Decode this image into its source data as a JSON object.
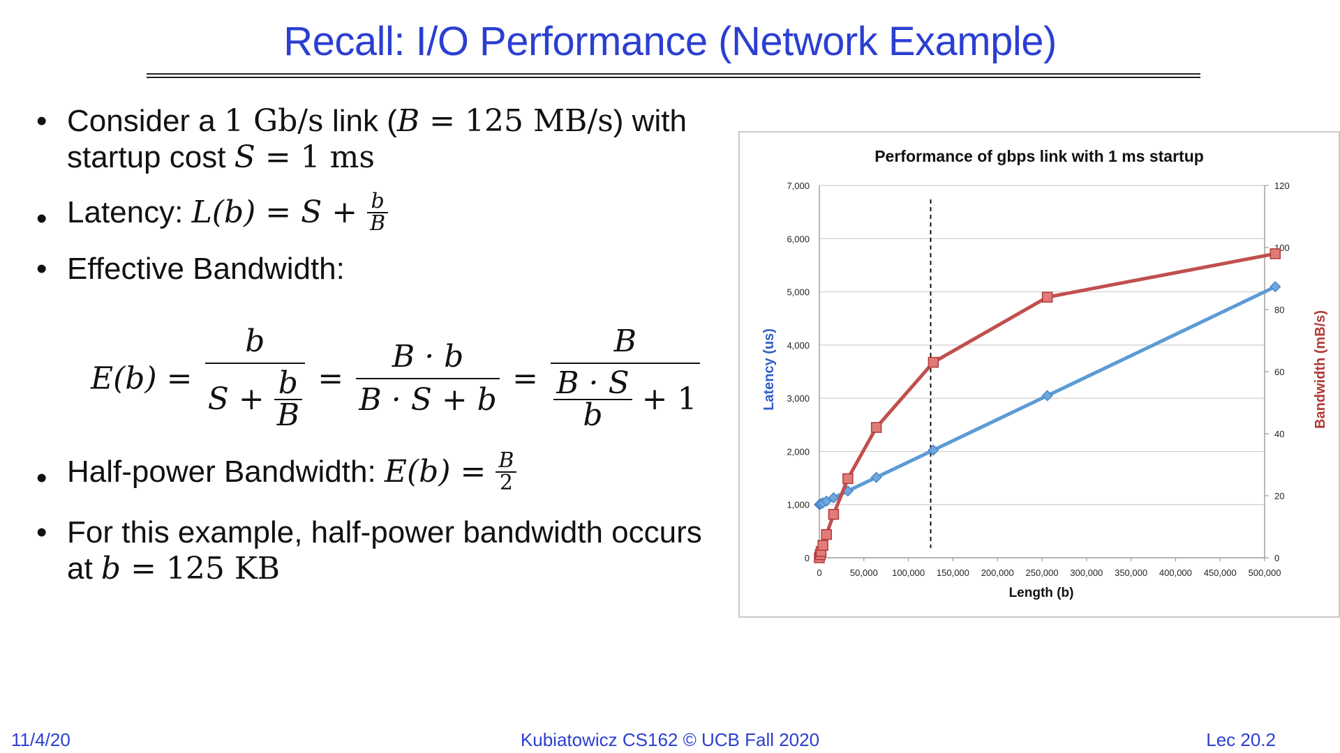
{
  "slide": {
    "title": "Recall: I/O Performance (Network Example)"
  },
  "bullets": {
    "b1": {
      "pre": "Consider a ",
      "link_rate": "1 Gb/s",
      "mid1": " link (",
      "B_sym": "B",
      "eq1": " = ",
      "bw_value": "125 MB/s",
      "post1": ") with",
      "line2_pre": "startup cost ",
      "S_sym": "S",
      "eq2": " = ",
      "startup_value": "1 ms"
    },
    "b2": {
      "label": "Latency: ",
      "lhs": "L(b) = S + ",
      "num": "b",
      "den": "B"
    },
    "b3": {
      "label": "Effective Bandwidth:"
    },
    "b4": {
      "label": "Half-power Bandwidth: ",
      "lhs": "E(b) = ",
      "num": "B",
      "den": "2"
    },
    "b5": {
      "line1": "For this example, half-power bandwidth occurs",
      "line2_pre": "at ",
      "b_sym": "b",
      "eq": " = ",
      "value": "125 KB"
    }
  },
  "equation": {
    "lhs": "E(b) =",
    "f1_num": "b",
    "f1_den_pre": "S +",
    "f1_den_num": "b",
    "f1_den_den": "B",
    "eq2": "=",
    "f2_num": "B · b",
    "f2_den": "B · S + b",
    "eq3": "=",
    "f3_num": "B",
    "f3_den_num": "B · S",
    "f3_den_den": "b",
    "f3_plus": "+ 1"
  },
  "chart_data": {
    "type": "line",
    "title": "Performance of gbps link with 1 ms startup",
    "xlabel": "Length (b)",
    "ylabel_left": "Latency (us)",
    "ylabel_right": "Bandwidth (mB/s)",
    "xlim": [
      0,
      500000
    ],
    "ylim_left": [
      0,
      7000
    ],
    "ylim_right": [
      0,
      120
    ],
    "x_ticks": [
      "0",
      "50,000",
      "100,000",
      "150,000",
      "200,000",
      "250,000",
      "300,000",
      "350,000",
      "400,000",
      "450,000",
      "500,000"
    ],
    "y_left_ticks": [
      "0",
      "1,000",
      "2,000",
      "3,000",
      "4,000",
      "5,000",
      "6,000",
      "7,000"
    ],
    "y_right_ticks": [
      "0",
      "20",
      "40",
      "60",
      "80",
      "100",
      "120"
    ],
    "grid": true,
    "vline_x": 125000,
    "series": [
      {
        "axis": "left",
        "color": "#5b9bd5",
        "marker": "diamond",
        "x": [
          0,
          1000,
          2000,
          4000,
          8000,
          16000,
          32000,
          64000,
          128000,
          256000,
          512000
        ],
        "y": [
          1000,
          1008,
          1016,
          1032,
          1064,
          1128,
          1256,
          1512,
          2024,
          3048,
          5096
        ]
      },
      {
        "axis": "right",
        "color": "#c0504d",
        "marker": "square",
        "x": [
          0,
          1000,
          2000,
          4000,
          8000,
          16000,
          32000,
          64000,
          128000,
          256000,
          512000
        ],
        "y": [
          0,
          1,
          2,
          4,
          7.5,
          14,
          25.5,
          42,
          63,
          84,
          98
        ]
      }
    ]
  },
  "footer": {
    "date": "11/4/20",
    "course": "Kubiatowicz CS162 © UCB Fall 2020",
    "lecture": "Lec 20.2"
  }
}
